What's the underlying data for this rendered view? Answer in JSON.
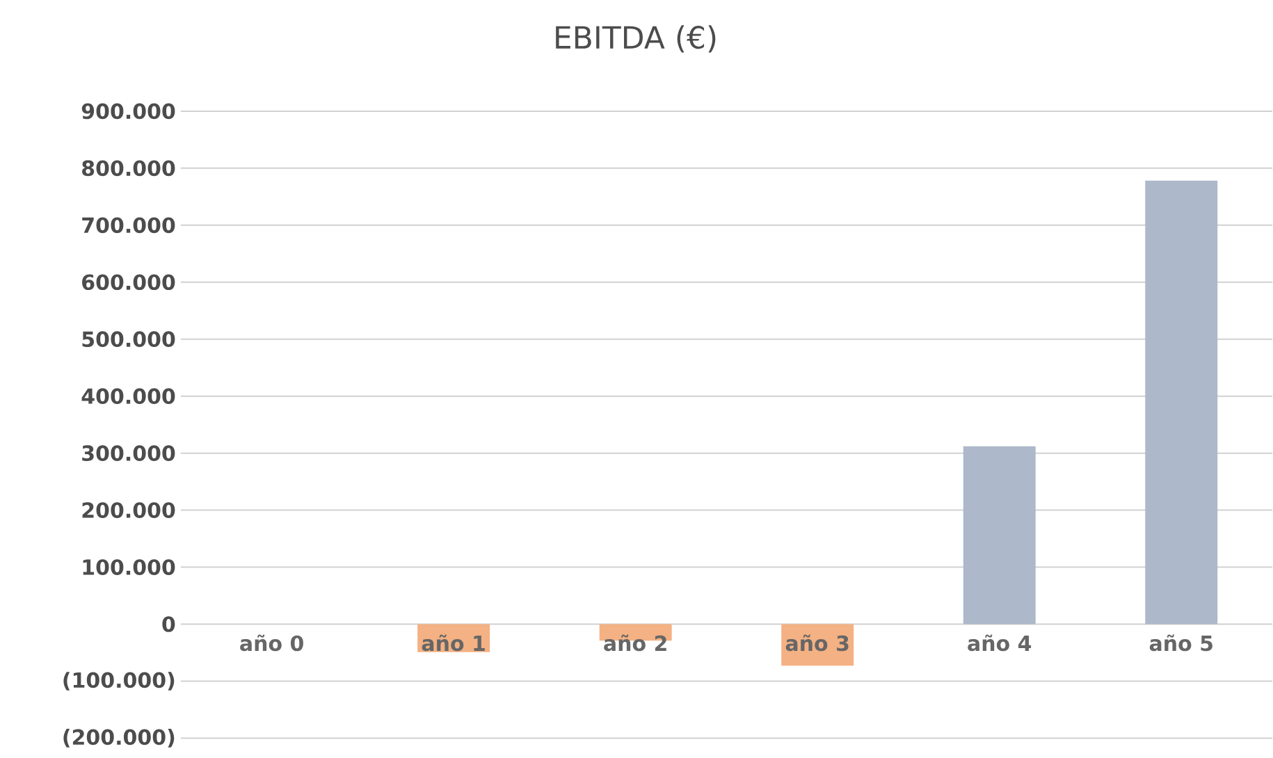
{
  "chart_data": {
    "type": "bar",
    "title": "EBITDA (€)",
    "categories": [
      "año 0",
      "año 1",
      "año 2",
      "año 3",
      "año 4",
      "año 5"
    ],
    "values": [
      0,
      -49000,
      -29000,
      -73000,
      312000,
      778000
    ],
    "colors": [
      "#adb9ca",
      "#f4b183",
      "#f4b183",
      "#f4b183",
      "#adb9ca",
      "#adb9ca"
    ],
    "ylim": [
      -200000,
      900000
    ],
    "yticks": [
      {
        "value": -200000,
        "label": "(200.000)"
      },
      {
        "value": -100000,
        "label": "(100.000)"
      },
      {
        "value": 0,
        "label": "0"
      },
      {
        "value": 100000,
        "label": "100.000"
      },
      {
        "value": 200000,
        "label": "200.000"
      },
      {
        "value": 300000,
        "label": "300.000"
      },
      {
        "value": 400000,
        "label": "400.000"
      },
      {
        "value": 500000,
        "label": "500.000"
      },
      {
        "value": 600000,
        "label": "600.000"
      },
      {
        "value": 700000,
        "label": "700.000"
      },
      {
        "value": 800000,
        "label": "800.000"
      },
      {
        "value": 900000,
        "label": "900.000"
      }
    ],
    "grid": "y"
  }
}
